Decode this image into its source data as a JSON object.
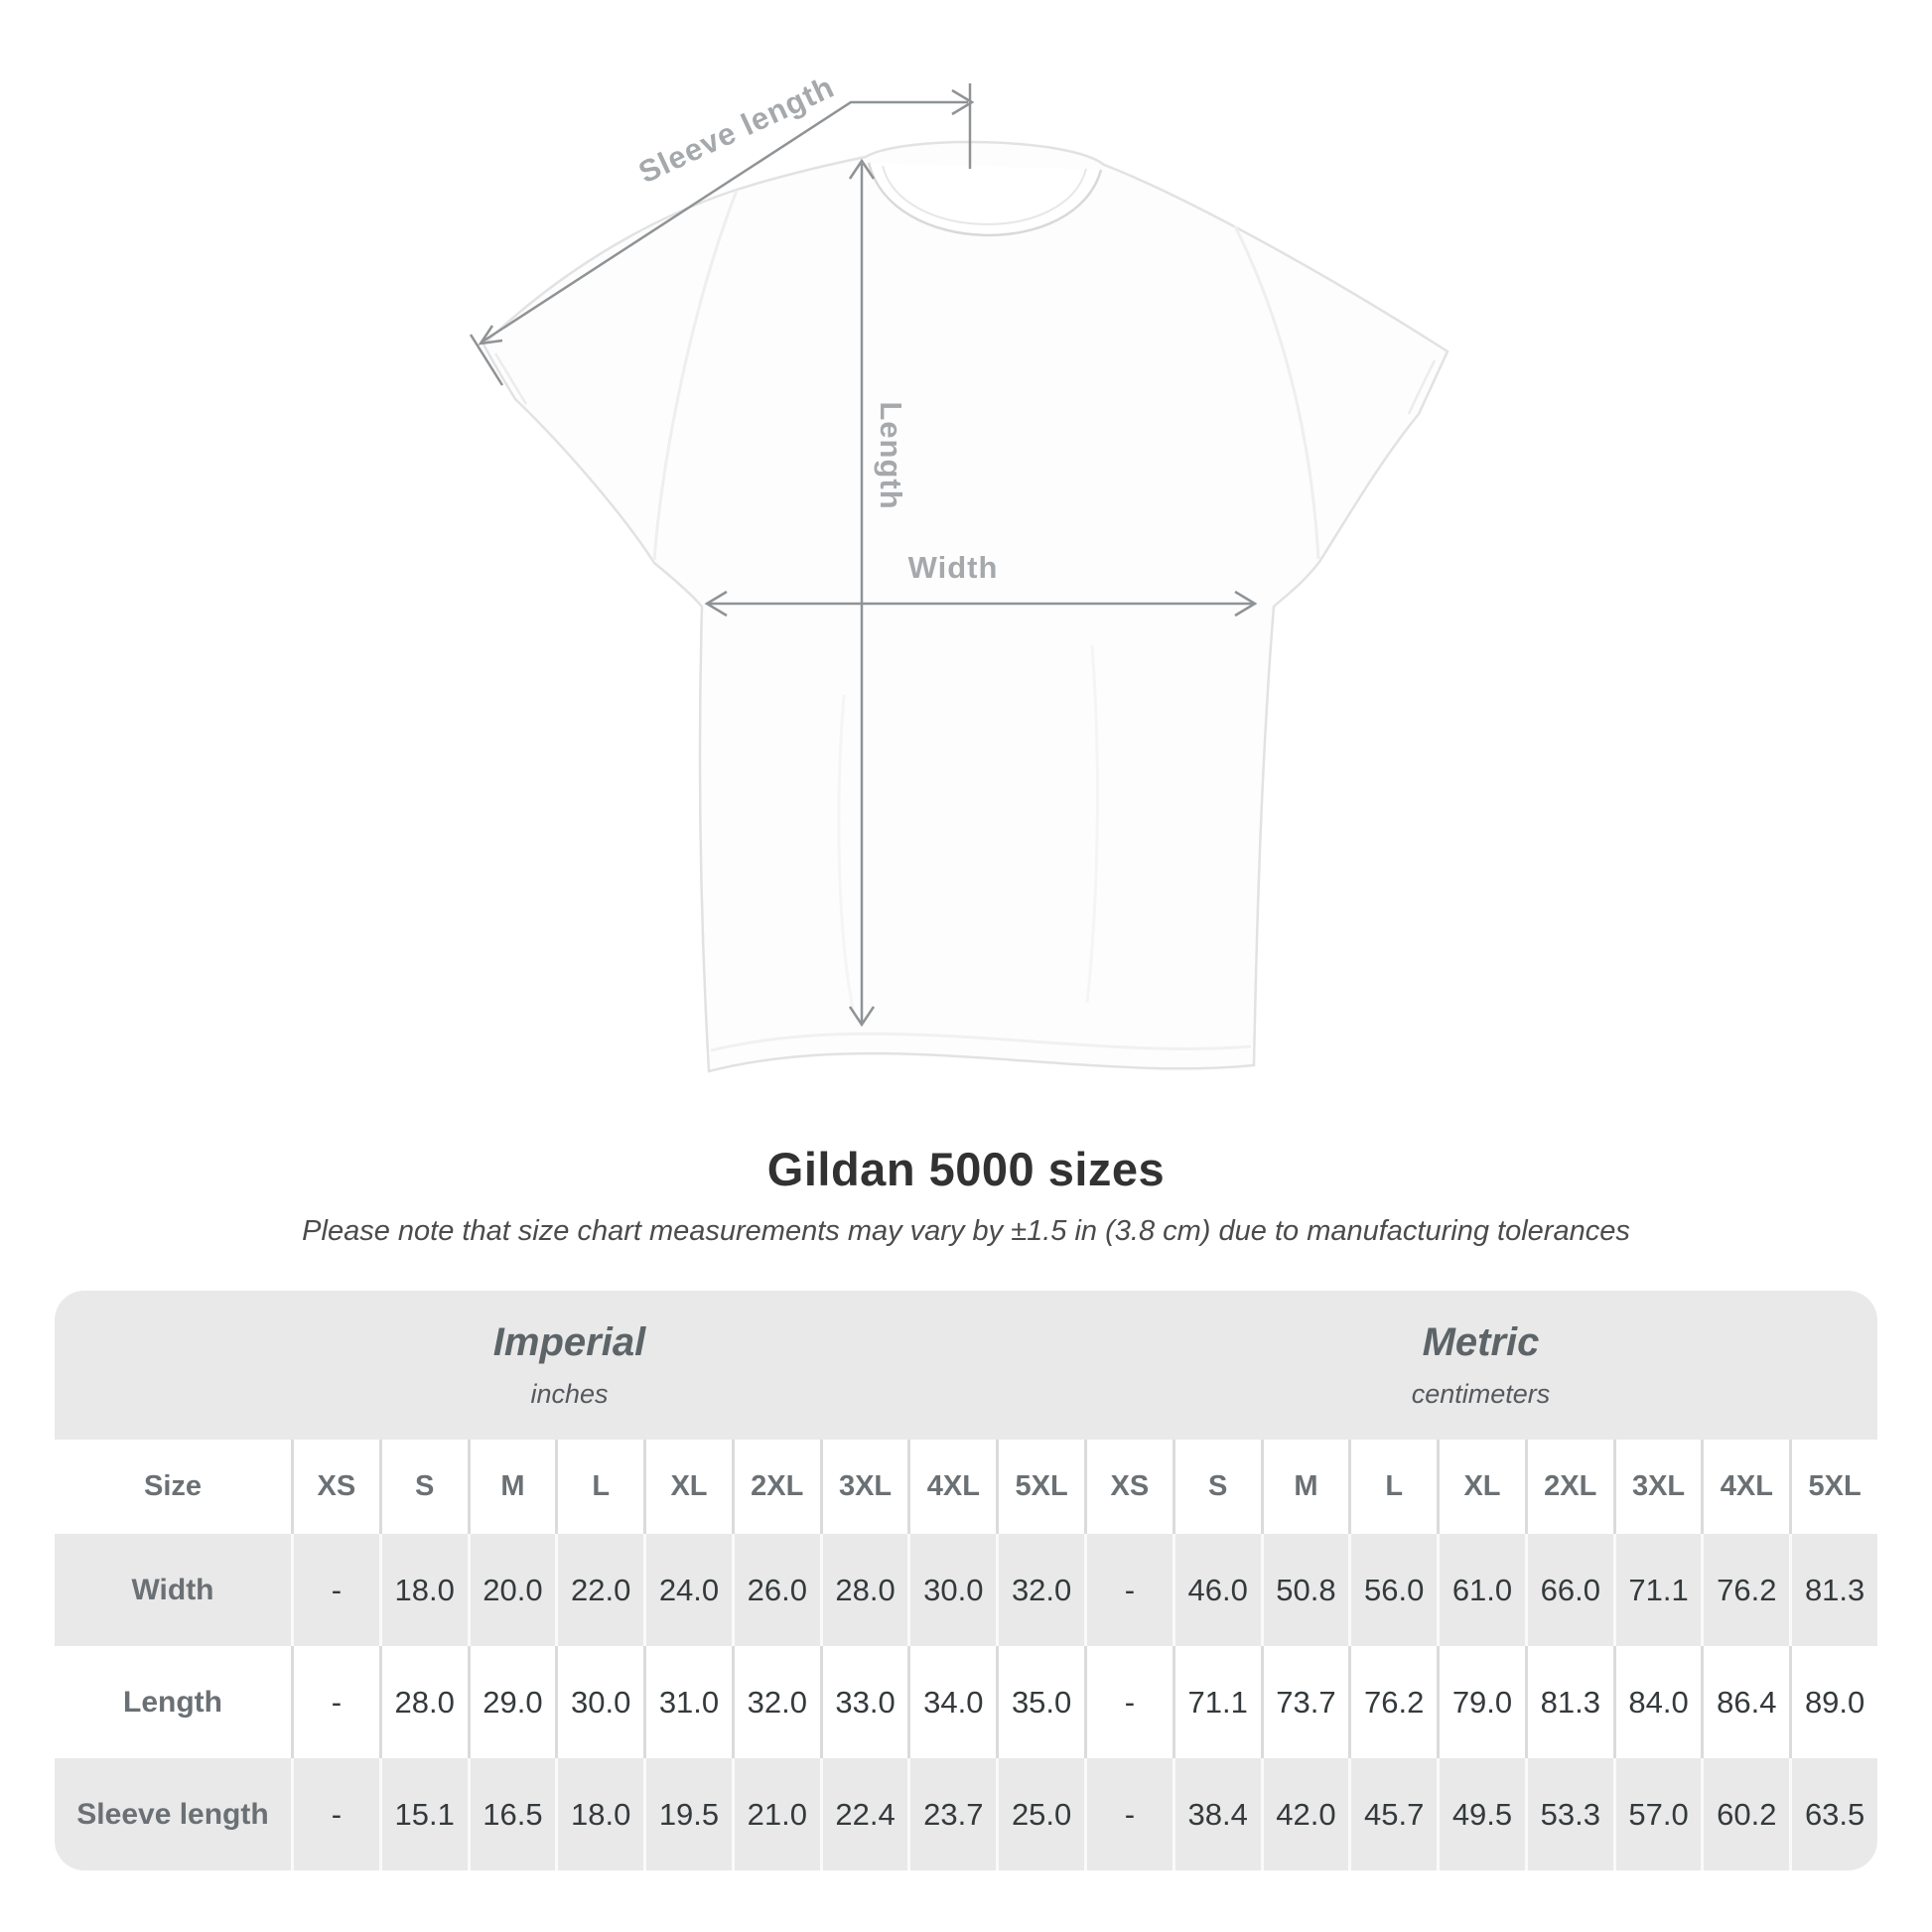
{
  "diagram": {
    "labels": {
      "sleeve_length": "Sleeve length",
      "length": "Length",
      "width": "Width"
    },
    "colors": {
      "dimension_line": "#8f9396",
      "dimension_label": "#a5a9ac",
      "tee_outline": "#e2e2e2"
    }
  },
  "heading": {
    "title": "Gildan 5000 sizes",
    "subtitle": "Please note that size chart measurements may vary by ±1.5 in (3.8 cm) due to manufacturing tolerances"
  },
  "chart_data": {
    "type": "table",
    "title": "Gildan 5000 sizes",
    "groups": [
      {
        "label": "Imperial",
        "unit": "inches",
        "span": 10
      },
      {
        "label": "Metric",
        "unit": "centimeters",
        "span": 9
      }
    ],
    "corner_header": "Size",
    "size_columns": [
      "XS",
      "S",
      "M",
      "L",
      "XL",
      "2XL",
      "3XL",
      "4XL",
      "5XL"
    ],
    "rows": [
      {
        "label": "Width",
        "imperial": [
          "-",
          "18.0",
          "20.0",
          "22.0",
          "24.0",
          "26.0",
          "28.0",
          "30.0",
          "32.0"
        ],
        "metric": [
          "-",
          "46.0",
          "50.8",
          "56.0",
          "61.0",
          "66.0",
          "71.1",
          "76.2",
          "81.3"
        ]
      },
      {
        "label": "Length",
        "imperial": [
          "-",
          "28.0",
          "29.0",
          "30.0",
          "31.0",
          "32.0",
          "33.0",
          "34.0",
          "35.0"
        ],
        "metric": [
          "-",
          "71.1",
          "73.7",
          "76.2",
          "79.0",
          "81.3",
          "84.0",
          "86.4",
          "89.0"
        ]
      },
      {
        "label": "Sleeve length",
        "imperial": [
          "-",
          "15.1",
          "16.5",
          "18.0",
          "19.5",
          "21.0",
          "22.4",
          "23.7",
          "25.0"
        ],
        "metric": [
          "-",
          "38.4",
          "42.0",
          "45.7",
          "49.5",
          "53.3",
          "57.0",
          "60.2",
          "63.5"
        ]
      }
    ]
  },
  "table_style": {
    "band_gray": "#e9e9e9",
    "divider_on_white": "#dbdbdb",
    "divider_on_gray": "#fafafa",
    "header_text": "#5d6468",
    "label_text": "#6a7074",
    "value_text": "#343a3c"
  }
}
